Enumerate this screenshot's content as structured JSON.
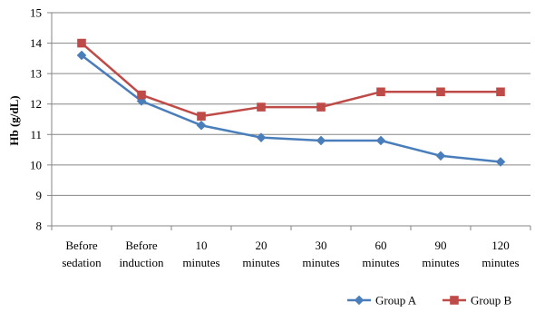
{
  "chart_data": {
    "type": "line",
    "title": "",
    "xlabel": "",
    "ylabel": "Hb (g/dL)",
    "ylim": [
      8,
      15
    ],
    "yticks": [
      8,
      9,
      10,
      11,
      12,
      13,
      14,
      15
    ],
    "grid": true,
    "legend_position": "bottom-right",
    "categories": [
      [
        "Before",
        "sedation"
      ],
      [
        "Before",
        "induction"
      ],
      [
        "10",
        "minutes"
      ],
      [
        "20",
        "minutes"
      ],
      [
        "30",
        "minutes"
      ],
      [
        "60",
        "minutes"
      ],
      [
        "90",
        "minutes"
      ],
      [
        "120",
        "minutes"
      ]
    ],
    "series": [
      {
        "name": "Group A",
        "color": "#4a7ebb",
        "marker": "diamond",
        "values": [
          13.6,
          12.1,
          11.3,
          10.9,
          10.8,
          10.8,
          10.3,
          10.1
        ]
      },
      {
        "name": "Group B",
        "color": "#be4b48",
        "marker": "square",
        "values": [
          14.0,
          12.3,
          11.6,
          11.9,
          11.9,
          12.4,
          12.4,
          12.4
        ]
      }
    ]
  }
}
